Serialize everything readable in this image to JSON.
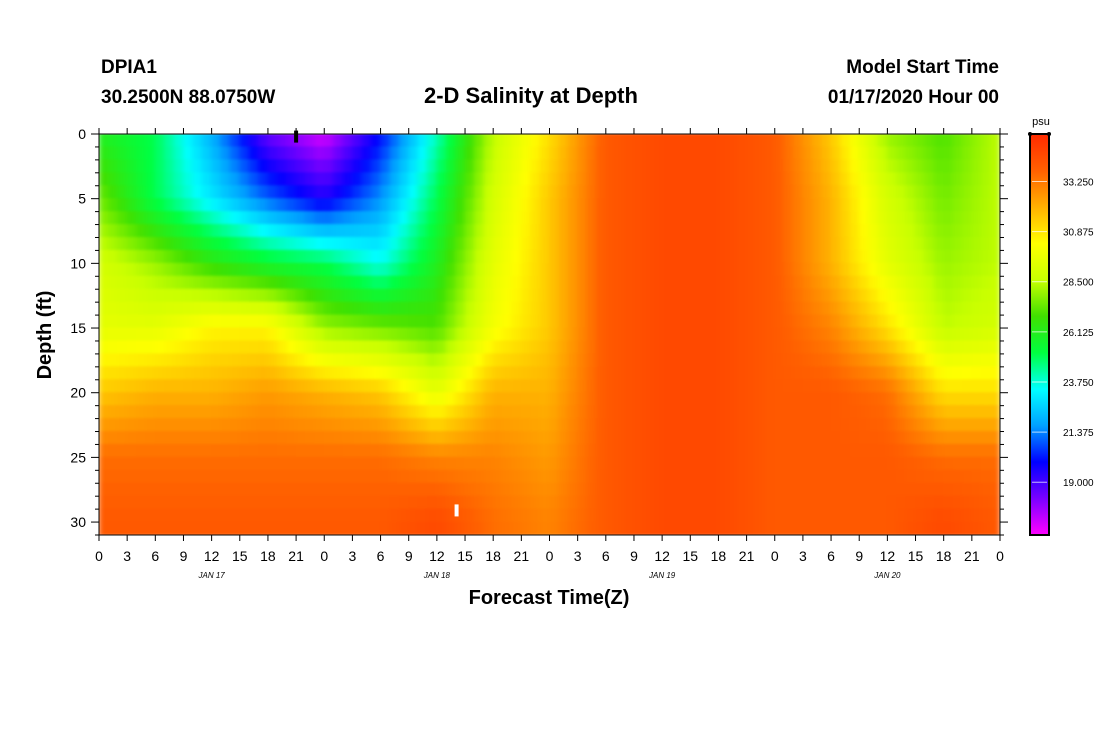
{
  "header": {
    "station": "DPIA1",
    "coords": "30.2500N 88.0750W",
    "title": "2-D Salinity at Depth",
    "start_label": "Model Start Time",
    "start_value": "01/17/2020 Hour 00"
  },
  "chart_data": {
    "type": "heatmap",
    "title": "2-D Salinity at Depth",
    "xlabel": "Forecast Time(Z)",
    "ylabel": "Depth (ft)",
    "x_hours_range": [
      0,
      96
    ],
    "ylim": [
      0,
      31
    ],
    "y_ticks": [
      0,
      5,
      10,
      15,
      20,
      25,
      30
    ],
    "x_tick_labels": [
      "0",
      "3",
      "6",
      "9",
      "12",
      "15",
      "18",
      "21",
      "0",
      "3",
      "6",
      "9",
      "12",
      "15",
      "18",
      "21",
      "0",
      "3",
      "6",
      "9",
      "12",
      "15",
      "18",
      "21",
      "0",
      "3",
      "6",
      "9",
      "12",
      "15",
      "18",
      "21",
      "0"
    ],
    "day_labels": [
      {
        "label": "JAN 17",
        "hour": 12
      },
      {
        "label": "JAN 18",
        "hour": 36
      },
      {
        "label": "JAN 19",
        "hour": 60
      },
      {
        "label": "JAN 20",
        "hour": 84
      }
    ],
    "colorbar": {
      "unit": "psu",
      "min": 16.5,
      "max": 35.5,
      "tick_values": [
        33.25,
        30.875,
        28.5,
        26.125,
        23.75,
        21.375,
        19.0
      ],
      "tick_labels": [
        "33.250",
        "30.875",
        "28.500",
        "26.125",
        "23.750",
        "21.375",
        "19.000"
      ],
      "colors": [
        "#ff00ff",
        "#7a00ff",
        "#0000ff",
        "#00a0ff",
        "#00ffff",
        "#00ff40",
        "#40e000",
        "#c8ff00",
        "#ffff00",
        "#ffb000",
        "#ff6000",
        "#ff2a00"
      ]
    },
    "depth_levels": [
      0,
      5,
      10,
      15,
      20,
      25,
      30
    ],
    "time_hours": [
      0,
      6,
      12,
      18,
      24,
      30,
      36,
      42,
      48,
      54,
      60,
      66,
      72,
      78,
      84,
      90,
      96
    ],
    "salinity": [
      [
        26.0,
        25.0,
        22.0,
        18.5,
        17.0,
        20.0,
        24.0,
        28.5,
        31.0,
        34.0,
        34.5,
        34.5,
        34.0,
        31.5,
        28.0,
        27.0,
        28.5
      ],
      [
        27.5,
        25.0,
        23.0,
        21.0,
        19.5,
        21.5,
        25.0,
        29.0,
        31.5,
        34.0,
        34.5,
        34.5,
        34.0,
        32.0,
        29.0,
        27.5,
        28.5
      ],
      [
        29.0,
        28.0,
        26.5,
        25.5,
        25.0,
        23.5,
        26.0,
        29.5,
        31.5,
        34.0,
        34.5,
        34.5,
        34.0,
        32.0,
        29.5,
        28.0,
        28.5
      ],
      [
        29.5,
        29.5,
        30.5,
        30.5,
        28.0,
        27.5,
        27.0,
        30.0,
        31.5,
        34.0,
        34.5,
        34.5,
        34.0,
        33.0,
        31.0,
        28.5,
        29.0
      ],
      [
        31.5,
        32.0,
        32.0,
        32.5,
        32.0,
        31.5,
        29.5,
        32.0,
        32.0,
        34.0,
        34.5,
        34.5,
        34.0,
        34.0,
        33.5,
        31.0,
        31.0
      ],
      [
        33.5,
        33.5,
        33.5,
        33.5,
        33.5,
        33.5,
        33.0,
        33.0,
        32.5,
        34.0,
        34.5,
        34.5,
        34.0,
        34.0,
        34.0,
        33.5,
        33.5
      ],
      [
        34.0,
        34.0,
        34.0,
        34.0,
        34.0,
        34.0,
        34.5,
        33.5,
        33.0,
        34.0,
        34.5,
        34.5,
        34.0,
        34.0,
        34.0,
        34.5,
        34.0
      ]
    ],
    "markers": [
      {
        "hour": 21,
        "depth": 0.2,
        "color": "#000000"
      },
      {
        "hour": 38.1,
        "depth": 29.1,
        "color": "#ffffff"
      }
    ]
  }
}
